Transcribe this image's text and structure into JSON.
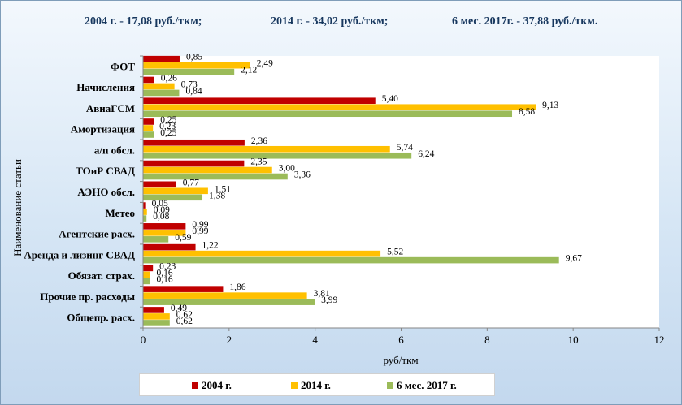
{
  "headline": {
    "item1": "2004 г. - 17,08 руб./ткм;",
    "item2": "2014 г. - 34,02 руб./ткм;",
    "item3": "6 мес. 2017г. - 37,88 руб./ткм."
  },
  "chart_data": {
    "type": "bar",
    "orientation": "horizontal",
    "title": "",
    "xlabel": "руб/ткм",
    "ylabel": "Наименование статьи",
    "xlim": [
      0,
      12
    ],
    "xticks": [
      "0",
      "2",
      "4",
      "6",
      "8",
      "10",
      "12"
    ],
    "grid": false,
    "legend_position": "bottom",
    "categories": [
      "ФОТ",
      "Начисления",
      "АвиаГСМ",
      "Амортизация",
      "а/п обсл.",
      "ТОиР СВАД",
      "АЭНО обсл.",
      "Метео",
      "Агентские расх.",
      "Аренда и лизинг СВАД",
      "Обязат. страх.",
      "Прочие пр. расходы",
      "Общепр. расх."
    ],
    "series": [
      {
        "name": "2004 г.",
        "color": "#c00000",
        "values": [
          0.85,
          0.26,
          5.4,
          0.25,
          2.36,
          2.35,
          0.77,
          0.05,
          0.99,
          1.22,
          0.23,
          1.86,
          0.49
        ],
        "labels": [
          "0,85",
          "0,26",
          "5,40",
          "0,25",
          "2,36",
          "2,35",
          "0,77",
          "0,05",
          "0,99",
          "1,22",
          "0,23",
          "1,86",
          "0,49"
        ]
      },
      {
        "name": "2014 г.",
        "color": "#ffc000",
        "values": [
          2.49,
          0.73,
          9.13,
          0.23,
          5.74,
          3.0,
          1.51,
          0.09,
          0.99,
          5.52,
          0.16,
          3.81,
          0.62
        ],
        "labels": [
          "2,49",
          "0,73",
          "9,13",
          "0,23",
          "5,74",
          "3,00",
          "1,51",
          "0,09",
          "0,99",
          "5,52",
          "0,16",
          "3,81",
          "0,62"
        ]
      },
      {
        "name": "6 мес. 2017 г.",
        "color": "#9bbb59",
        "values": [
          2.12,
          0.84,
          8.58,
          0.25,
          6.24,
          3.36,
          1.38,
          0.08,
          0.59,
          9.67,
          0.16,
          3.99,
          0.62
        ],
        "labels": [
          "2,12",
          "0,84",
          "8,58",
          "0,25",
          "6,24",
          "3,36",
          "1,38",
          "0,08",
          "0,59",
          "9,67",
          "0,16",
          "3,99",
          "0,62"
        ]
      }
    ]
  }
}
